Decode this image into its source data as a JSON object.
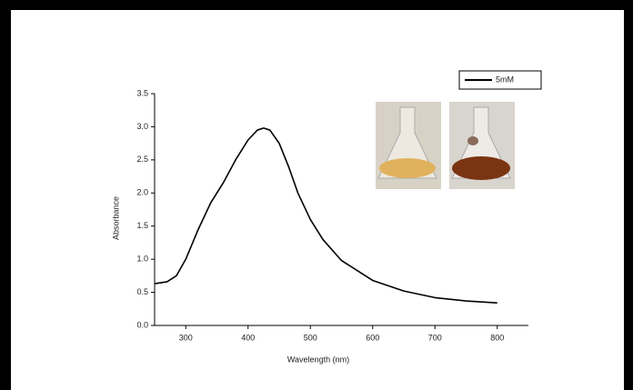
{
  "chart_data": {
    "type": "line",
    "xlabel": "Wavelength (nm)",
    "ylabel": "Absorbance",
    "x": [
      250,
      270,
      285,
      300,
      320,
      340,
      360,
      380,
      400,
      415,
      425,
      435,
      450,
      465,
      480,
      500,
      520,
      550,
      580,
      600,
      650,
      700,
      750,
      800
    ],
    "series": [
      {
        "name": "5mM",
        "color": "#000000",
        "values": [
          0.63,
          0.66,
          0.75,
          1.0,
          1.45,
          1.85,
          2.15,
          2.5,
          2.8,
          2.95,
          2.98,
          2.95,
          2.75,
          2.4,
          2.0,
          1.6,
          1.3,
          0.98,
          0.8,
          0.68,
          0.52,
          0.42,
          0.37,
          0.34
        ]
      }
    ],
    "xlim": [
      250,
      850
    ],
    "xticks": [
      300,
      400,
      500,
      600,
      700,
      800
    ],
    "ylim": [
      0,
      3.5
    ],
    "yticks": [
      {
        "value": 0,
        "label": "0.0"
      },
      0.5,
      {
        "value": 1,
        "label": "1.0"
      },
      1.5,
      {
        "value": 2,
        "label": "2.0"
      },
      2.5,
      {
        "value": 3,
        "label": "3.0"
      },
      3.5
    ],
    "legend": "upper right"
  }
}
